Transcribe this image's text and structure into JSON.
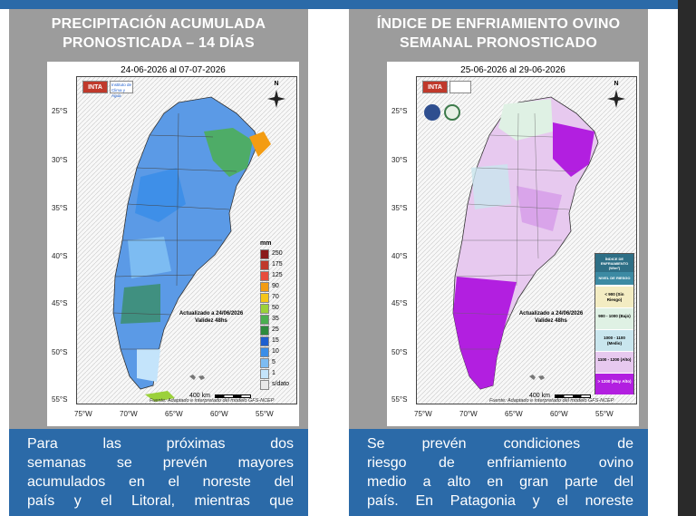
{
  "left": {
    "title_line1": "PRECIPITACIÓN ACUMULADA",
    "title_line2": "PRONOSTICADA – 14 DÍAS",
    "map_header": "24-06-2026 al 07-07-2026",
    "logo_text": "INTA",
    "logo_sub": "Instituto de Clima y Agua",
    "legend_unit": "mm",
    "legend": [
      {
        "label": "250",
        "color": "#8b1a1a"
      },
      {
        "label": "175",
        "color": "#c0392b"
      },
      {
        "label": "125",
        "color": "#e74c3c"
      },
      {
        "label": "90",
        "color": "#f39c12"
      },
      {
        "label": "70",
        "color": "#f5c518"
      },
      {
        "label": "50",
        "color": "#9bd13a"
      },
      {
        "label": "35",
        "color": "#4caf50"
      },
      {
        "label": "25",
        "color": "#2e8b3c"
      },
      {
        "label": "15",
        "color": "#1f5fcf"
      },
      {
        "label": "10",
        "color": "#3b8ee8"
      },
      {
        "label": "5",
        "color": "#7dbcf2"
      },
      {
        "label": "1",
        "color": "#c4e4fb"
      },
      {
        "label": "s/dato",
        "color": "#e8e8e8"
      }
    ],
    "note_line1": "Actualizado a 24/06/2026",
    "note_line2": "Validez 48hs",
    "scale_label": "400 km",
    "fuente": "Fuente: Adaptado e interpretado del modelo GFS-NCEP",
    "caption_lines": [
      "Para las próximas dos",
      "semanas se prevén mayores",
      "acumulados en el noreste del",
      "país y el Litoral, mientras que"
    ]
  },
  "right": {
    "title_line1": "ÍNDICE DE ENFRIAMIENTO OVINO",
    "title_line2": "SEMANAL PRONOSTICADO",
    "map_header": "25-06-2026 al 29-06-2026",
    "logo_text": "INTA",
    "legend_title": "ÍNDICE DE ENFRIAMIENTO (W/m²)",
    "legend_subtitle": "NIVEL DE RIESGO",
    "legend": [
      {
        "label": "< 900 (Sin Riesgo)",
        "color": "#f3ecc2"
      },
      {
        "label": "900 - 1000 (Bajo)",
        "color": "#dff1e4"
      },
      {
        "label": "1000 - 1100 (Medio)",
        "color": "#c9e6ee"
      },
      {
        "label": "1100 - 1200 (Alto)",
        "color": "#e7c9ef"
      },
      {
        "label": "> 1200 (Muy Alto)",
        "color": "#b21fe0"
      }
    ],
    "note_line1": "Actualizado a 24/06/2026",
    "note_line2": "Validez 48hs",
    "scale_label": "400 km",
    "fuente": "Fuente: Adaptado e interpretado del modelo GFS-NCEP",
    "caption_lines": [
      "Se prevén condiciones de",
      "riesgo de enfriamiento ovino",
      "medio a alto en gran parte del",
      "país. En Patagonia y el noreste"
    ]
  },
  "axes": {
    "lat": [
      "25°S",
      "30°S",
      "35°S",
      "40°S",
      "45°S",
      "50°S",
      "55°S"
    ],
    "lon": [
      "75°W",
      "70°W",
      "65°W",
      "60°W",
      "55°W"
    ],
    "north": "N"
  },
  "colors": {
    "panel_bg": "#9c9c9c",
    "caption_bg": "#2b6aa8",
    "precip_base": "#4f8fe0",
    "cold_base": "#a326d9"
  }
}
